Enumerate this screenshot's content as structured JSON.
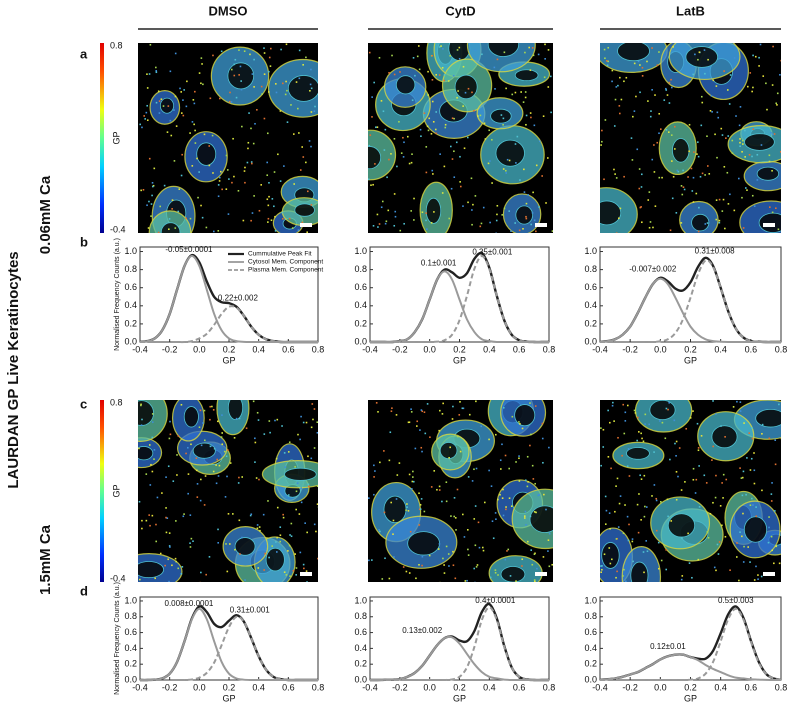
{
  "figure": {
    "title": "LAURDAN GP Live Keratinocytes",
    "columns": [
      "DMSO",
      "CytD",
      "LatB"
    ],
    "rows": [
      "0.06mM Ca",
      "1.5mM Ca"
    ],
    "panel_labels": [
      "a",
      "b",
      "c",
      "d"
    ],
    "colorbar": {
      "label": "GP",
      "ticks": [
        0.8,
        -0.4
      ]
    }
  },
  "chart_data": [
    {
      "type": "line",
      "xlabel": "GP",
      "ylabel": "Normalised Frequency Counts (a.u.)",
      "legend": "upper right",
      "x": [
        -0.4,
        -0.35,
        -0.3,
        -0.25,
        -0.2,
        -0.15,
        -0.1,
        -0.05,
        0,
        0.05,
        0.1,
        0.15,
        0.2,
        0.25,
        0.3,
        0.35,
        0.4,
        0.45,
        0.5,
        0.55,
        0.6,
        0.65,
        0.7,
        0.75,
        0.8
      ],
      "xlim": [
        -0.4,
        0.8
      ],
      "xticks": [
        -0.4,
        -0.2,
        {
          "value": 0,
          "label": "0.0"
        },
        0.2,
        0.4,
        0.6,
        0.8
      ],
      "ylim": [
        0,
        1.05
      ],
      "yticks": [
        {
          "value": 0,
          "label": "0.0"
        },
        0.2,
        0.4,
        0.6,
        0.8,
        {
          "value": 1,
          "label": "1.0"
        }
      ],
      "annotations": [
        "-0.05±0.0001",
        "0.22±0.002"
      ],
      "series": [
        {
          "name": "Cummulative Peak Fit",
          "color": "#222222",
          "style": "solid",
          "values": [
            0.002,
            0.01,
            0.04,
            0.13,
            0.31,
            0.58,
            0.84,
            0.96,
            0.88,
            0.67,
            0.5,
            0.44,
            0.43,
            0.39,
            0.29,
            0.17,
            0.08,
            0.03,
            0.01,
            0,
            0,
            0,
            0,
            0,
            0
          ]
        },
        {
          "name": "Cytosol Mem. Component",
          "color": "#9a9a9a",
          "style": "solid",
          "values": [
            0.002,
            0.01,
            0.04,
            0.13,
            0.31,
            0.58,
            0.84,
            0.95,
            0.84,
            0.58,
            0.31,
            0.13,
            0.04,
            0.01,
            0.002,
            0,
            0,
            0,
            0,
            0,
            0,
            0,
            0,
            0,
            0
          ]
        },
        {
          "name": "Plasma Mem. Component",
          "color": "#9a9a9a",
          "style": "dashed",
          "values": [
            0,
            0,
            0,
            0,
            0,
            0,
            0,
            0.01,
            0.04,
            0.09,
            0.19,
            0.31,
            0.39,
            0.38,
            0.29,
            0.17,
            0.08,
            0.03,
            0.01,
            0,
            0,
            0,
            0,
            0,
            0
          ]
        }
      ]
    },
    {
      "type": "line",
      "xlabel": "GP",
      "x": [
        -0.4,
        -0.35,
        -0.3,
        -0.25,
        -0.2,
        -0.15,
        -0.1,
        -0.05,
        0,
        0.05,
        0.1,
        0.15,
        0.2,
        0.25,
        0.3,
        0.35,
        0.4,
        0.45,
        0.5,
        0.55,
        0.6,
        0.65,
        0.7,
        0.75,
        0.8
      ],
      "xlim": [
        -0.4,
        0.8
      ],
      "xticks": [
        -0.4,
        -0.2,
        {
          "value": 0,
          "label": "0.0"
        },
        0.2,
        0.4,
        0.6,
        0.8
      ],
      "ylim": [
        0,
        1.05
      ],
      "yticks": [
        {
          "value": 0,
          "label": "0.0"
        },
        0.2,
        0.4,
        0.6,
        0.8,
        {
          "value": 1,
          "label": "1.0"
        }
      ],
      "annotations": [
        "0.1±0.001",
        "0.35±0.001"
      ],
      "series": [
        {
          "color": "#222222",
          "style": "solid",
          "values": [
            0,
            0,
            0,
            0,
            0.01,
            0.03,
            0.11,
            0.25,
            0.47,
            0.69,
            0.8,
            0.77,
            0.71,
            0.76,
            0.92,
            0.98,
            0.82,
            0.51,
            0.24,
            0.08,
            0.02,
            0.004,
            0,
            0,
            0
          ]
        },
        {
          "color": "#9a9a9a",
          "style": "solid",
          "values": [
            0,
            0,
            0,
            0,
            0.01,
            0.03,
            0.11,
            0.25,
            0.47,
            0.69,
            0.78,
            0.69,
            0.47,
            0.25,
            0.11,
            0.03,
            0.01,
            0,
            0,
            0,
            0,
            0,
            0,
            0,
            0
          ]
        },
        {
          "color": "#9a9a9a",
          "style": "dashed",
          "values": [
            0,
            0,
            0,
            0,
            0,
            0,
            0,
            0,
            0,
            0.004,
            0.02,
            0.08,
            0.24,
            0.51,
            0.81,
            0.95,
            0.81,
            0.51,
            0.24,
            0.08,
            0.02,
            0.004,
            0,
            0,
            0
          ]
        }
      ]
    },
    {
      "type": "line",
      "xlabel": "GP",
      "x": [
        -0.4,
        -0.35,
        -0.3,
        -0.25,
        -0.2,
        -0.15,
        -0.1,
        -0.05,
        0,
        0.05,
        0.1,
        0.15,
        0.2,
        0.25,
        0.3,
        0.35,
        0.4,
        0.45,
        0.5,
        0.55,
        0.6,
        0.65,
        0.7,
        0.75,
        0.8
      ],
      "xlim": [
        -0.4,
        0.8
      ],
      "xticks": [
        -0.4,
        -0.2,
        {
          "value": 0,
          "label": "0.0"
        },
        0.2,
        0.4,
        0.6,
        0.8
      ],
      "ylim": [
        0,
        1.05
      ],
      "yticks": [
        {
          "value": 0,
          "label": "0.0"
        },
        0.2,
        0.4,
        0.6,
        0.8,
        {
          "value": 1,
          "label": "1.0"
        }
      ],
      "annotations": [
        "-0.007±0.002",
        "0.31±0.008"
      ],
      "series": [
        {
          "color": "#222222",
          "style": "solid",
          "values": [
            0.003,
            0.01,
            0.03,
            0.08,
            0.17,
            0.32,
            0.49,
            0.64,
            0.71,
            0.67,
            0.59,
            0.57,
            0.66,
            0.83,
            0.93,
            0.84,
            0.6,
            0.34,
            0.15,
            0.05,
            0.01,
            0.003,
            0,
            0,
            0
          ]
        },
        {
          "color": "#9a9a9a",
          "style": "solid",
          "values": [
            0.003,
            0.01,
            0.03,
            0.08,
            0.17,
            0.32,
            0.49,
            0.64,
            0.7,
            0.64,
            0.49,
            0.32,
            0.17,
            0.08,
            0.03,
            0.01,
            0.003,
            0,
            0,
            0,
            0,
            0,
            0,
            0,
            0
          ]
        },
        {
          "color": "#9a9a9a",
          "style": "dashed",
          "values": [
            0,
            0,
            0,
            0,
            0,
            0,
            0,
            0,
            0.008,
            0.03,
            0.1,
            0.25,
            0.49,
            0.75,
            0.9,
            0.83,
            0.6,
            0.34,
            0.15,
            0.05,
            0.01,
            0.003,
            0,
            0,
            0
          ]
        }
      ]
    },
    {
      "type": "line",
      "xlabel": "GP",
      "ylabel": "Normalised Frequency Counts (a.u.)",
      "x": [
        -0.4,
        -0.35,
        -0.3,
        -0.25,
        -0.2,
        -0.15,
        -0.1,
        -0.05,
        0,
        0.05,
        0.1,
        0.15,
        0.2,
        0.25,
        0.3,
        0.35,
        0.4,
        0.45,
        0.5,
        0.55,
        0.6,
        0.65,
        0.7,
        0.75,
        0.8
      ],
      "xlim": [
        -0.4,
        0.8
      ],
      "xticks": [
        -0.4,
        -0.2,
        {
          "value": 0,
          "label": "0.0"
        },
        0.2,
        0.4,
        0.6,
        0.8
      ],
      "ylim": [
        0,
        1.05
      ],
      "yticks": [
        {
          "value": 0,
          "label": "0.0"
        },
        0.2,
        0.4,
        0.6,
        0.8,
        {
          "value": 1,
          "label": "1.0"
        }
      ],
      "annotations": [
        "0.008±0.0001",
        "0.31±0.001"
      ],
      "series": [
        {
          "color": "#222222",
          "style": "solid",
          "values": [
            0,
            0,
            0.004,
            0.02,
            0.08,
            0.23,
            0.49,
            0.78,
            0.93,
            0.86,
            0.71,
            0.67,
            0.75,
            0.82,
            0.74,
            0.53,
            0.3,
            0.13,
            0.04,
            0.01,
            0,
            0,
            0,
            0,
            0
          ]
        },
        {
          "color": "#9a9a9a",
          "style": "solid",
          "values": [
            0,
            0,
            0.004,
            0.02,
            0.08,
            0.23,
            0.49,
            0.77,
            0.9,
            0.77,
            0.49,
            0.23,
            0.08,
            0.02,
            0.004,
            0,
            0,
            0,
            0,
            0,
            0,
            0,
            0,
            0,
            0
          ]
        },
        {
          "color": "#9a9a9a",
          "style": "dashed",
          "values": [
            0,
            0,
            0,
            0,
            0,
            0,
            0,
            0.007,
            0.03,
            0.09,
            0.22,
            0.44,
            0.67,
            0.8,
            0.74,
            0.53,
            0.3,
            0.13,
            0.04,
            0.01,
            0,
            0,
            0,
            0,
            0
          ]
        }
      ]
    },
    {
      "type": "line",
      "xlabel": "GP",
      "x": [
        -0.4,
        -0.35,
        -0.3,
        -0.25,
        -0.2,
        -0.15,
        -0.1,
        -0.05,
        0,
        0.05,
        0.1,
        0.15,
        0.2,
        0.25,
        0.3,
        0.35,
        0.4,
        0.45,
        0.5,
        0.55,
        0.6,
        0.65,
        0.7,
        0.75,
        0.8
      ],
      "xlim": [
        -0.4,
        0.8
      ],
      "xticks": [
        -0.4,
        -0.2,
        {
          "value": 0,
          "label": "0.0"
        },
        0.2,
        0.4,
        0.6,
        0.8
      ],
      "ylim": [
        0,
        1.05
      ],
      "yticks": [
        {
          "value": 0,
          "label": "0.0"
        },
        0.2,
        0.4,
        0.6,
        0.8,
        {
          "value": 1,
          "label": "1.0"
        }
      ],
      "annotations": [
        "0.13±0.002",
        "0.4±0.0001"
      ],
      "series": [
        {
          "color": "#222222",
          "style": "solid",
          "values": [
            0,
            0,
            0.002,
            0.004,
            0.01,
            0.04,
            0.09,
            0.18,
            0.31,
            0.44,
            0.53,
            0.55,
            0.5,
            0.49,
            0.62,
            0.86,
            0.96,
            0.78,
            0.43,
            0.16,
            0.04,
            0.007,
            0,
            0,
            0
          ]
        },
        {
          "color": "#9a9a9a",
          "style": "solid",
          "values": [
            0,
            0,
            0.002,
            0.004,
            0.01,
            0.04,
            0.09,
            0.18,
            0.31,
            0.44,
            0.53,
            0.54,
            0.46,
            0.33,
            0.2,
            0.1,
            0.04,
            0.02,
            0.005,
            0,
            0,
            0,
            0,
            0,
            0
          ]
        },
        {
          "color": "#9a9a9a",
          "style": "dashed",
          "values": [
            0,
            0,
            0,
            0,
            0,
            0,
            0,
            0,
            0,
            0,
            0,
            0.007,
            0.04,
            0.16,
            0.42,
            0.76,
            0.92,
            0.76,
            0.42,
            0.16,
            0.04,
            0.007,
            0,
            0,
            0
          ]
        }
      ]
    },
    {
      "type": "line",
      "xlabel": "GP",
      "x": [
        -0.4,
        -0.35,
        -0.3,
        -0.25,
        -0.2,
        -0.15,
        -0.1,
        -0.05,
        0,
        0.05,
        0.1,
        0.15,
        0.2,
        0.25,
        0.3,
        0.35,
        0.4,
        0.45,
        0.5,
        0.55,
        0.6,
        0.65,
        0.7,
        0.75,
        0.8
      ],
      "xlim": [
        -0.4,
        0.8
      ],
      "xticks": [
        -0.4,
        -0.2,
        {
          "value": 0,
          "label": "0.0"
        },
        0.2,
        0.4,
        0.6,
        0.8
      ],
      "ylim": [
        0,
        1.05
      ],
      "yticks": [
        {
          "value": 0,
          "label": "0.0"
        },
        0.2,
        0.4,
        0.6,
        0.8,
        {
          "value": 1,
          "label": "1.0"
        }
      ],
      "annotations": [
        "0.12±0.01",
        "0.5±0.003"
      ],
      "series": [
        {
          "color": "#222222",
          "style": "solid",
          "values": [
            0.005,
            0.01,
            0.02,
            0.04,
            0.07,
            0.1,
            0.15,
            0.2,
            0.26,
            0.3,
            0.32,
            0.32,
            0.29,
            0.27,
            0.27,
            0.37,
            0.59,
            0.83,
            0.93,
            0.79,
            0.5,
            0.24,
            0.08,
            0.02,
            0.004
          ]
        },
        {
          "color": "#9a9a9a",
          "style": "solid",
          "values": [
            0.005,
            0.01,
            0.02,
            0.04,
            0.07,
            0.1,
            0.15,
            0.2,
            0.26,
            0.3,
            0.32,
            0.32,
            0.29,
            0.25,
            0.19,
            0.14,
            0.1,
            0.06,
            0.03,
            0.02,
            0.01,
            0.005,
            0.002,
            0,
            0
          ]
        },
        {
          "color": "#9a9a9a",
          "style": "dashed",
          "values": [
            0,
            0,
            0,
            0,
            0,
            0,
            0,
            0,
            0,
            0,
            0,
            0,
            0.004,
            0.02,
            0.08,
            0.23,
            0.49,
            0.77,
            0.9,
            0.77,
            0.49,
            0.23,
            0.08,
            0.02,
            0.004
          ]
        }
      ]
    }
  ]
}
